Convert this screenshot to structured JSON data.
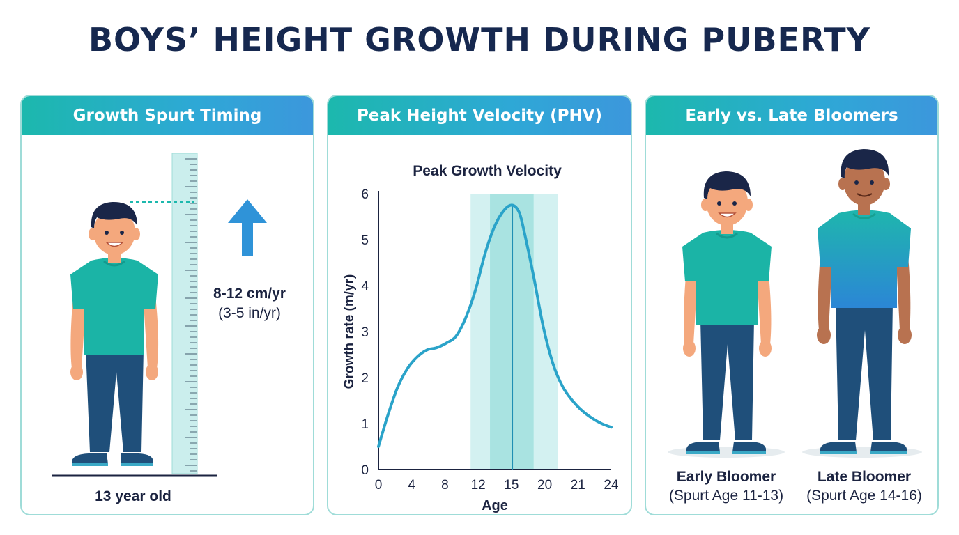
{
  "title": "BOYS’ HEIGHT GROWTH DURING PUBERTY",
  "panels": {
    "timing": {
      "header": "Growth Spurt Timing",
      "rate": "8-12 cm/yr",
      "rate_imperial": "(3-5 in/yr)",
      "caption": "13 year old"
    },
    "phv": {
      "header": "Peak Height Velocity (PHV)"
    },
    "bloomers": {
      "header": "Early vs. Late Bloomers",
      "early_label": "Early Bloomer",
      "early_range": "(Spurt Age 11-13)",
      "late_label": "Late Bloomer",
      "late_range": "(Spurt Age 14-16)"
    }
  },
  "colors": {
    "navy": "#16284f",
    "teal": "#1cb8ad",
    "blue": "#3c97dc",
    "curve": "#2aa3c9",
    "highlight_outer": "#d3f1f1",
    "highlight_inner": "#a9e3e1"
  },
  "chart_data": {
    "type": "line",
    "title": "Peak Growth Velocity",
    "xlabel": "Age",
    "ylabel": "Growth rate (m/yr)",
    "xticks": [
      0,
      4,
      8,
      12,
      15,
      20,
      21,
      24
    ],
    "yticks": [
      0,
      1,
      2,
      3,
      4,
      5,
      6
    ],
    "xlim": [
      0,
      24
    ],
    "ylim": [
      0,
      6
    ],
    "grid": false,
    "peak_age": 13.8,
    "highlight_outer": [
      9.5,
      18.5
    ],
    "highlight_inner": [
      11.5,
      16
    ],
    "series": [
      {
        "x": [
          0,
          1,
          2,
          3,
          4,
          5,
          6,
          7,
          8,
          9,
          10,
          11,
          12,
          13,
          13.8,
          14.5,
          15,
          16,
          17,
          18,
          19,
          20,
          21,
          22,
          23,
          24
        ],
        "values": [
          0.5,
          1.2,
          1.8,
          2.2,
          2.45,
          2.6,
          2.65,
          2.75,
          2.9,
          3.3,
          3.9,
          4.7,
          5.3,
          5.65,
          5.75,
          5.6,
          5.2,
          4.2,
          3.1,
          2.3,
          1.8,
          1.5,
          1.28,
          1.12,
          1.0,
          0.92
        ]
      }
    ]
  }
}
